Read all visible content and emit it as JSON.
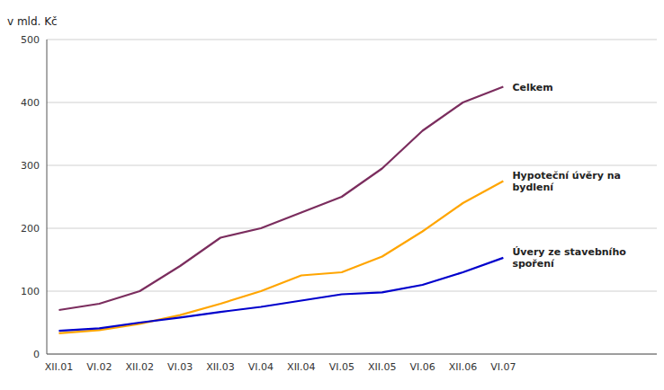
{
  "chart_data": {
    "type": "line",
    "y_label": "v mld. Kč",
    "categories": [
      "XII.01",
      "VI.02",
      "XII.02",
      "VI.03",
      "XII.03",
      "VI.04",
      "XII.04",
      "VI.05",
      "XII.05",
      "VI.06",
      "XII.06",
      "VI.07"
    ],
    "series": [
      {
        "name": "Celkem",
        "color": "#7B2D5E",
        "values": [
          70,
          80,
          100,
          140,
          185,
          200,
          225,
          250,
          295,
          355,
          400,
          425
        ]
      },
      {
        "name": "Hypoteční úvěry na\nbydlení",
        "color": "#FFA500",
        "values": [
          33,
          38,
          48,
          62,
          80,
          100,
          125,
          130,
          155,
          195,
          240,
          275
        ]
      },
      {
        "name": "Úvery ze stavebního\nspoření",
        "color": "#0000CC",
        "values": [
          37,
          41,
          50,
          58,
          67,
          75,
          85,
          95,
          98,
          110,
          130,
          153
        ]
      }
    ],
    "ylim": [
      0,
      500
    ],
    "yticks": [
      0,
      100,
      200,
      300,
      400,
      500
    ],
    "grid": true
  }
}
